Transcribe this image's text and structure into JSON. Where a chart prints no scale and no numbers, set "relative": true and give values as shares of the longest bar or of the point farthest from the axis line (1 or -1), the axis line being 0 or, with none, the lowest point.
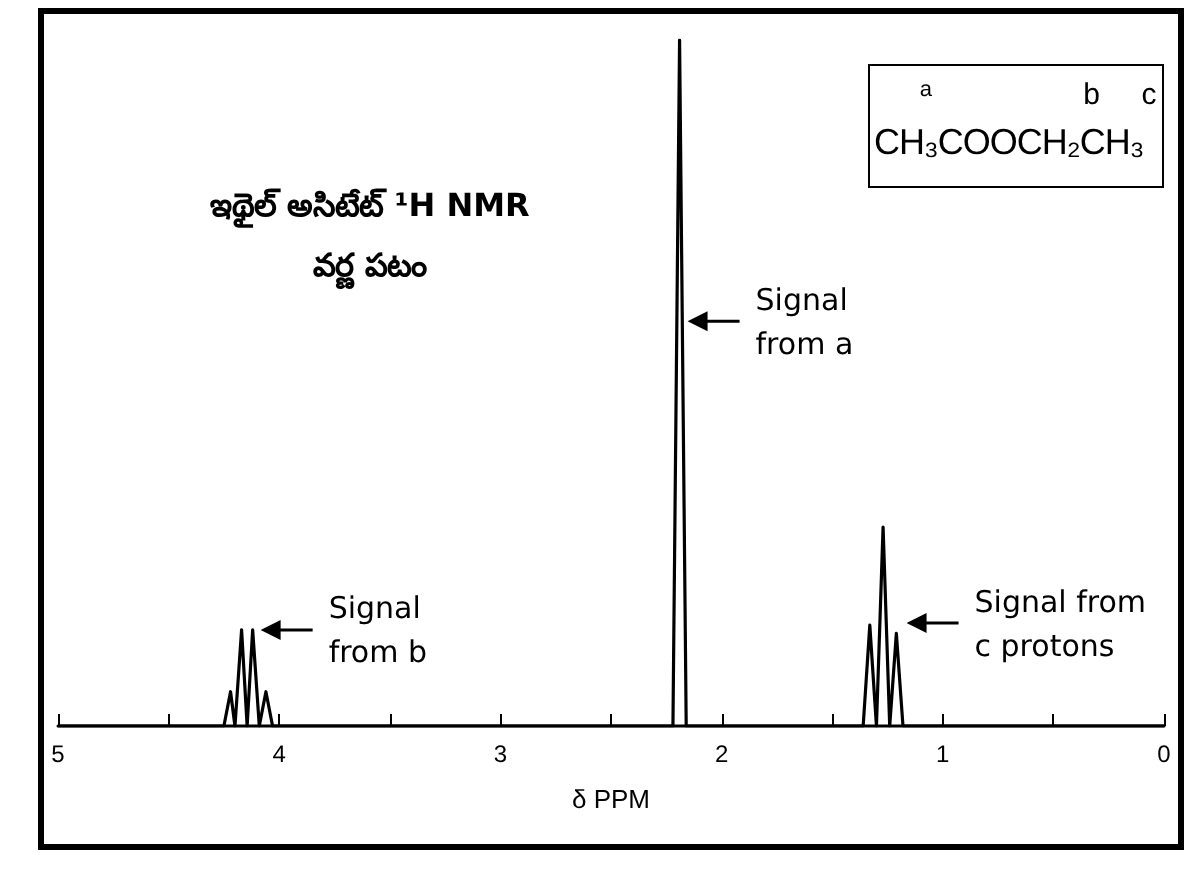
{
  "chart_data": {
    "type": "line",
    "relative": true,
    "title": "ఇథైల్ అసిటేట్ ¹H NMR\nవర్ణ పటం",
    "xlabel": "δ PPM",
    "x": [
      5,
      4.25,
      4.22,
      4.2,
      4.17,
      4.145,
      4.12,
      4.09,
      4.06,
      4.03,
      2.22,
      2.19,
      2.16,
      1.36,
      1.33,
      1.3,
      1.27,
      1.24,
      1.21,
      1.18,
      0
    ],
    "series": [
      {
        "color": "#000000",
        "values": [
          0,
          0,
          0.05,
          0,
          0.14,
          0,
          0.14,
          0,
          0.05,
          0,
          0,
          1,
          0,
          0,
          0.147,
          0,
          0.29,
          0,
          0.135,
          0,
          0
        ]
      }
    ],
    "xlim": [
      5,
      0
    ],
    "xticks": [
      5,
      {
        "value": 4.5,
        "label": null
      },
      4,
      {
        "value": 3.5,
        "label": null
      },
      3,
      {
        "value": 2.5,
        "label": null
      },
      2,
      {
        "value": 1.5,
        "label": null
      },
      1,
      {
        "value": 0.5,
        "label": null
      },
      0
    ],
    "grid": false,
    "marker": "none",
    "line_style": "solid",
    "annotations": [
      "a",
      "b",
      "c",
      "CH₃COOCH₂CH₃",
      {
        "text": "Signal\nfrom a",
        "x": 2.19,
        "y": 0.59
      },
      {
        "text": "Signal\nfrom b",
        "x": 4.12,
        "y": 0.14
      },
      {
        "text": "Signal from\nc protons",
        "x": 1.2,
        "y": 0.15
      }
    ]
  }
}
